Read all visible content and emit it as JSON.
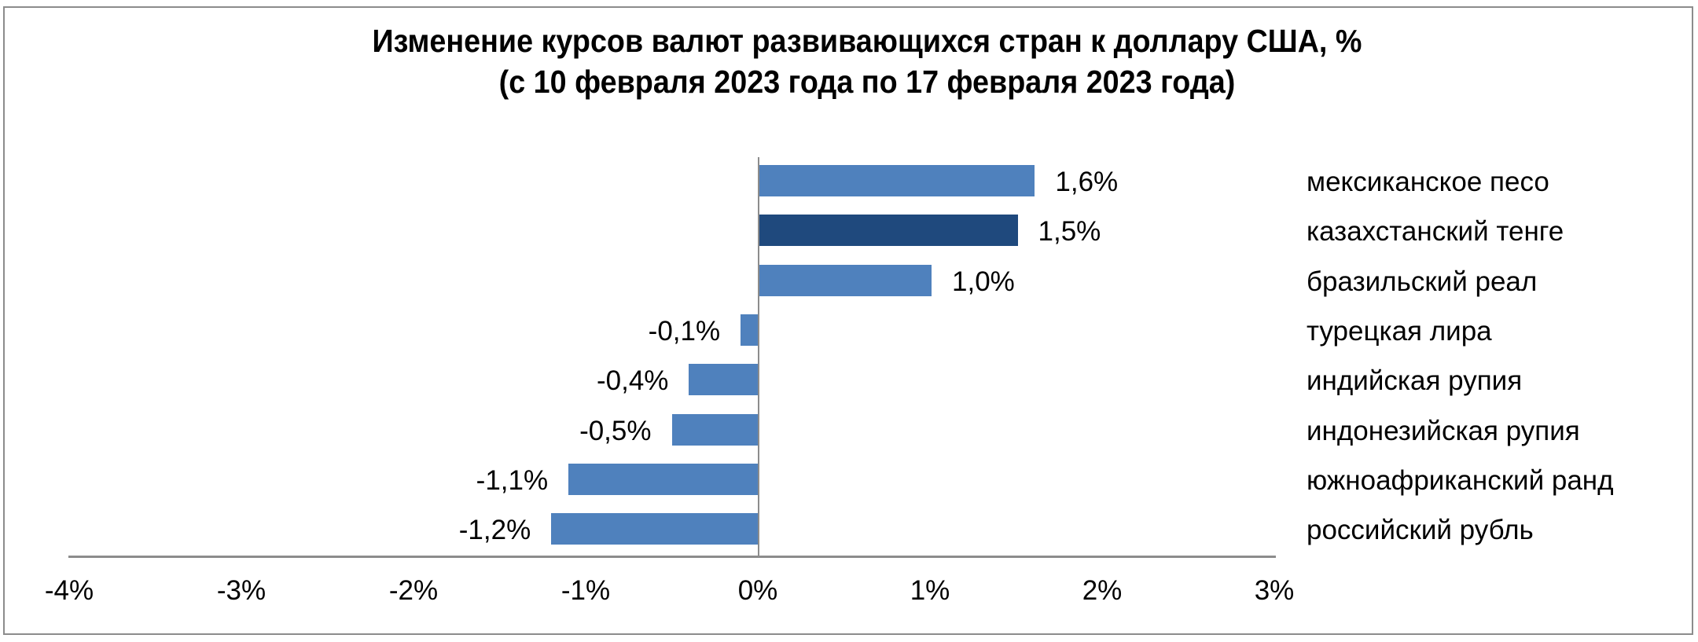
{
  "chart_data": {
    "type": "bar",
    "orientation": "horizontal",
    "title": "Изменение курсов валют развивающихся стран к доллару США, %",
    "subtitle": "(с 10 февраля 2023 года по 17 февраля 2023 года)",
    "xlabel": "",
    "ylabel": "",
    "xlim": [
      -4,
      3
    ],
    "x_ticks": [
      "-4%",
      "-3%",
      "-2%",
      "-1%",
      "0%",
      "1%",
      "2%",
      "3%"
    ],
    "grid": false,
    "legend_position": "right (category labels)",
    "categories": [
      "мексиканское песо",
      "казахстанский тенге",
      "бразильский реал",
      "турецкая лира",
      "индийская рупия",
      "индонезийская рупия",
      "южноафриканский ранд",
      "российский рубль"
    ],
    "values": [
      1.6,
      1.5,
      1.0,
      -0.1,
      -0.4,
      -0.5,
      -1.1,
      -1.2
    ],
    "value_labels": [
      "1,6%",
      "1,5%",
      "1,0%",
      "-0,1%",
      "-0,4%",
      "-0,5%",
      "-1,1%",
      "-1,2%"
    ],
    "highlighted_category": "казахстанский тенге",
    "colors": {
      "default": "#4f81bd",
      "highlight": "#1f497d",
      "axis": "#8c8c8c"
    }
  },
  "title": {
    "line1": "Изменение курсов валют развивающихся стран к доллару США, %",
    "line2": "(с 10 февраля 2023 года по 17 февраля 2023 года)"
  },
  "axis": {
    "ticks": [
      "-4%",
      "-3%",
      "-2%",
      "-1%",
      "0%",
      "1%",
      "2%",
      "3%"
    ]
  },
  "rows": [
    {
      "label": "мексиканское песо",
      "value_label": "1,6%"
    },
    {
      "label": "казахстанский тенге",
      "value_label": "1,5%"
    },
    {
      "label": "бразильский реал",
      "value_label": "1,0%"
    },
    {
      "label": "турецкая лира",
      "value_label": "-0,1%"
    },
    {
      "label": "индийская рупия",
      "value_label": "-0,4%"
    },
    {
      "label": "индонезийская рупия",
      "value_label": "-0,5%"
    },
    {
      "label": "южноафриканский ранд",
      "value_label": "-1,1%"
    },
    {
      "label": "российский рубль",
      "value_label": "-1,2%"
    }
  ]
}
